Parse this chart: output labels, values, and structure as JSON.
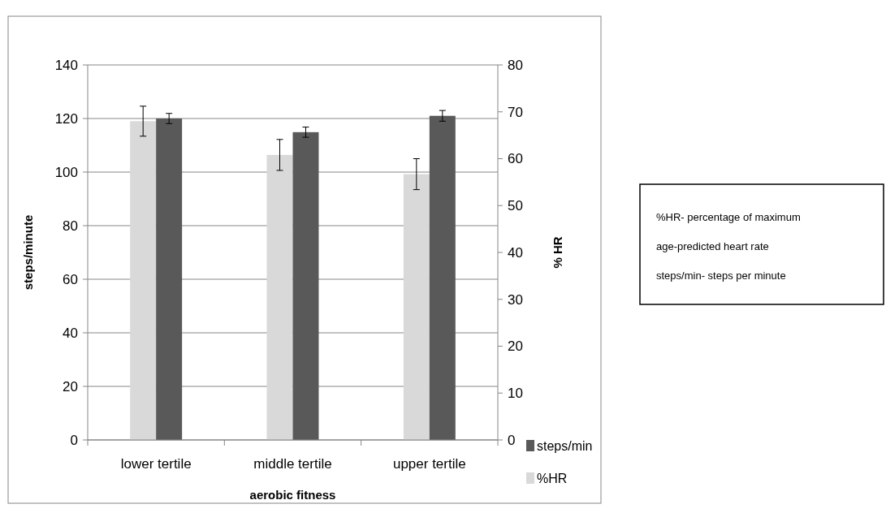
{
  "chart_data": {
    "type": "bar",
    "xlabel": "aerobic fitness",
    "ylabel": "steps/minute",
    "y2label": "% HR",
    "categories": [
      "lower tertile",
      "middle tertile",
      "upper tertile"
    ],
    "series": [
      {
        "name": "%HR",
        "color": "#d9d9d9",
        "axis": "y2",
        "values": [
          68,
          60.8,
          56.7
        ],
        "errors": [
          3.2,
          3.3,
          3.3
        ]
      },
      {
        "name": "steps/min",
        "color": "#595959",
        "values": [
          120,
          114.9,
          121
        ],
        "errors": [
          1.9,
          1.9,
          2
        ]
      }
    ],
    "ylim": [
      0,
      140
    ],
    "yticks": [
      0,
      20,
      40,
      60,
      80,
      100,
      120,
      140
    ],
    "y2lim": [
      0,
      80
    ],
    "y2ticks": [
      0,
      10,
      20,
      30,
      40,
      50,
      60,
      70,
      80
    ],
    "grid": "y",
    "legend": "right",
    "annotations": [
      "%HR- percentage of maximum",
      "age-predicted heart rate",
      "steps/min- steps per minute"
    ]
  }
}
